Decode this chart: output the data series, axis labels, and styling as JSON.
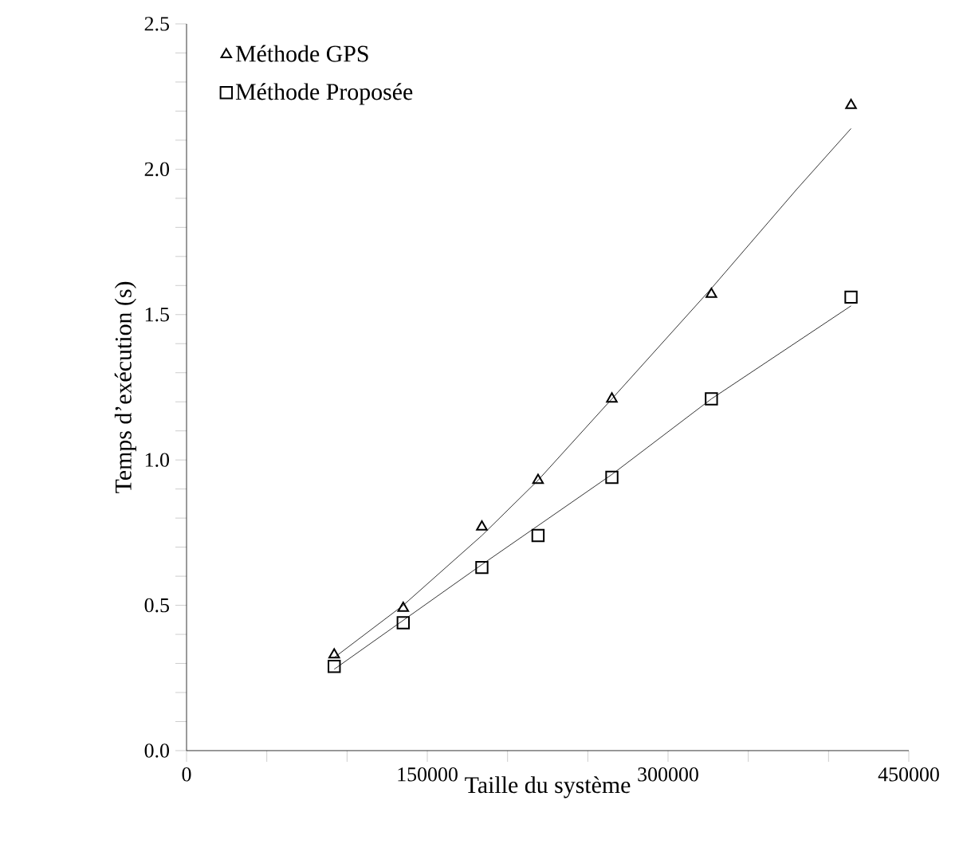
{
  "chart_data": {
    "type": "scatter",
    "xlabel": "Taille du système",
    "ylabel": "Temps d’exécution (s)",
    "xlim": [
      0,
      450000
    ],
    "ylim": [
      0,
      2.5
    ],
    "xticks": [
      0,
      150000,
      300000,
      450000
    ],
    "yticks": [
      {
        "value": 0,
        "label": "0.0"
      },
      {
        "value": 0.5,
        "label": "0.5"
      },
      {
        "value": 1,
        "label": "1.0"
      },
      {
        "value": 1.5,
        "label": "1.5"
      },
      {
        "value": 2,
        "label": "2.0"
      },
      {
        "value": 2.5,
        "label": "2.5"
      }
    ],
    "grid": false,
    "legend": "top left",
    "series": [
      {
        "name": "Méthode GPS",
        "marker": "triangle",
        "color": "#000000",
        "x": [
          92000,
          135000,
          184000,
          219000,
          265000,
          327000,
          414000
        ],
        "values": [
          0.33,
          0.49,
          0.77,
          0.93,
          1.21,
          1.57,
          2.22
        ]
      },
      {
        "name": "Méthode Proposée",
        "marker": "square",
        "color": "#000000",
        "x": [
          92000,
          135000,
          184000,
          219000,
          265000,
          327000,
          414000
        ],
        "values": [
          0.29,
          0.44,
          0.63,
          0.74,
          0.94,
          1.21,
          1.56
        ]
      },
      {
        "type": "line",
        "marker": "none",
        "line_style": "solid",
        "color": "#000000",
        "x": [
          92000,
          135000,
          184000,
          219000,
          265000,
          327000,
          380000,
          414000
        ],
        "values": [
          0.32,
          0.5,
          0.74,
          0.93,
          1.21,
          1.59,
          1.93,
          2.14
        ]
      },
      {
        "type": "line",
        "marker": "none",
        "line_style": "solid",
        "color": "#000000",
        "x": [
          92000,
          184000,
          265000,
          327000,
          414000
        ],
        "values": [
          0.28,
          0.64,
          0.95,
          1.21,
          1.53
        ]
      }
    ]
  }
}
